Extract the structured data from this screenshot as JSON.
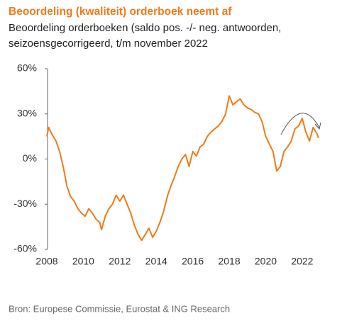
{
  "chart_data": {
    "type": "line",
    "title": "Beoordeling (kwaliteit) orderboek neemt af",
    "subtitle": "Beoordeling orderboeken (saldo pos. -/- neg. antwoorden, seizoensgecorrigeerd, t/m november 2022",
    "source": "Bron: Europese Commissie, Eurostat & ING Research",
    "x": [
      2008.0,
      2008.1,
      2008.3,
      2008.5,
      2008.7,
      2008.9,
      2009.1,
      2009.3,
      2009.5,
      2009.7,
      2009.9,
      2010.1,
      2010.3,
      2010.5,
      2010.7,
      2010.9,
      2011.0,
      2011.2,
      2011.4,
      2011.6,
      2011.8,
      2012.0,
      2012.2,
      2012.4,
      2012.6,
      2012.8,
      2013.0,
      2013.2,
      2013.4,
      2013.6,
      2013.8,
      2014.0,
      2014.2,
      2014.4,
      2014.6,
      2014.8,
      2015.0,
      2015.2,
      2015.4,
      2015.6,
      2015.8,
      2016.0,
      2016.2,
      2016.4,
      2016.6,
      2016.8,
      2017.0,
      2017.2,
      2017.4,
      2017.6,
      2017.8,
      2018.0,
      2018.2,
      2018.4,
      2018.6,
      2018.8,
      2019.0,
      2019.2,
      2019.4,
      2019.6,
      2019.8,
      2020.0,
      2020.2,
      2020.4,
      2020.6,
      2020.8,
      2021.0,
      2021.2,
      2021.4,
      2021.6,
      2021.8,
      2022.0,
      2022.2,
      2022.4,
      2022.6,
      2022.8,
      2022.9
    ],
    "series": [
      {
        "color": "#f07a1a",
        "values": [
          15,
          21,
          16,
          12,
          5,
          -5,
          -18,
          -25,
          -28,
          -33,
          -36,
          -38,
          -33,
          -36,
          -40,
          -42,
          -47,
          -38,
          -33,
          -30,
          -24,
          -28,
          -24,
          -30,
          -36,
          -44,
          -50,
          -54,
          -50,
          -46,
          -52,
          -48,
          -42,
          -35,
          -25,
          -18,
          -12,
          -5,
          0,
          3,
          -5,
          5,
          2,
          8,
          10,
          15,
          18,
          20,
          22,
          25,
          30,
          42,
          36,
          38,
          40,
          36,
          34,
          33,
          31,
          30,
          25,
          15,
          10,
          5,
          -8,
          -5,
          5,
          8,
          12,
          20,
          22,
          27,
          18,
          12,
          21,
          17,
          14
        ]
      }
    ],
    "xlim": [
      2008,
      2023
    ],
    "xticks": [
      2008,
      2010,
      2012,
      2014,
      2016,
      2018,
      2020,
      2022
    ],
    "ylim": [
      -60,
      60
    ],
    "yticks": [
      {
        "value": -60,
        "label": "-60%"
      },
      {
        "value": -30,
        "label": "-30%"
      },
      {
        "value": 0,
        "label": "0%"
      },
      {
        "value": 30,
        "label": "30%"
      },
      {
        "value": 60,
        "label": "60%"
      }
    ]
  }
}
